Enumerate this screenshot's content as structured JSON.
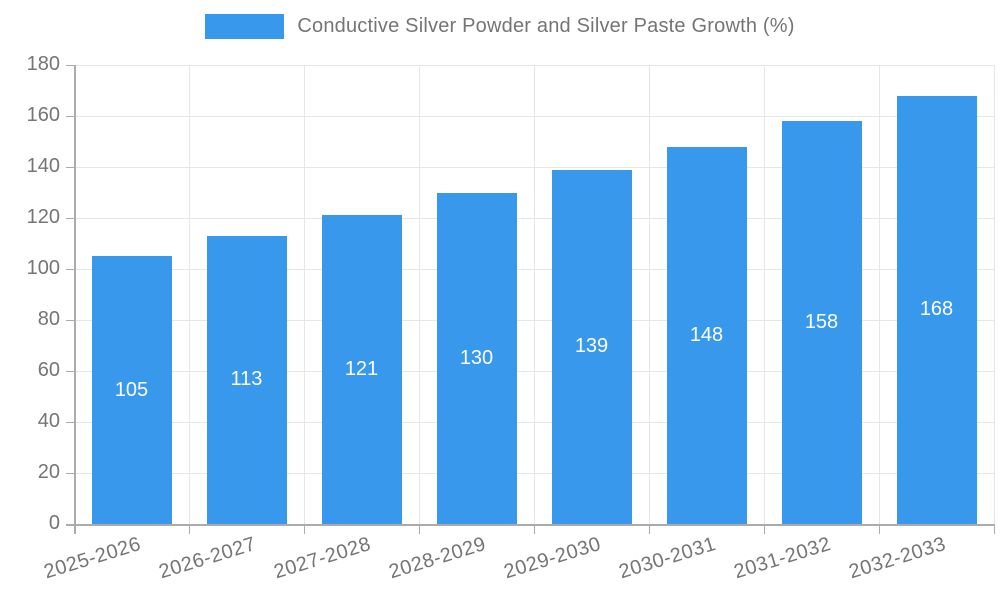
{
  "chart_data": {
    "type": "bar",
    "title": "Conductive Silver Powder and Silver Paste Growth (%)",
    "categories": [
      "2025-2026",
      "2026-2027",
      "2027-2028",
      "2028-2029",
      "2029-2030",
      "2030-2031",
      "2031-2032",
      "2032-2033"
    ],
    "values": [
      105,
      113,
      121,
      130,
      139,
      148,
      158,
      168
    ],
    "xlabel": "",
    "ylabel": "",
    "ylim": [
      0,
      180
    ],
    "ytick_step": 20,
    "grid": true,
    "legend_position": "top",
    "colors": {
      "bar": "#3899ec",
      "bar_label": "#ffffff",
      "axis": "#ababab",
      "grid": "#e6e6e6",
      "text": "#757575",
      "background": "#ffffff"
    }
  }
}
